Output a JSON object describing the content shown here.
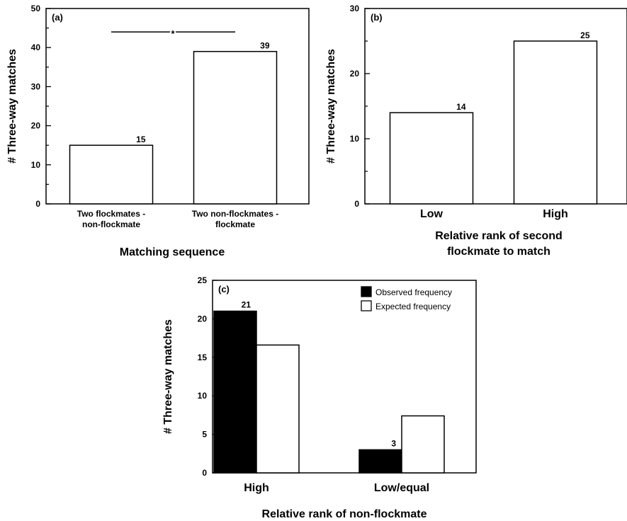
{
  "chart_data": [
    {
      "type": "bar",
      "panel_label": "(a)",
      "categories": [
        [
          "Two flockmates -",
          "non-flockmate"
        ],
        [
          "Two non-flockmates -",
          "flockmate"
        ]
      ],
      "values": [
        15,
        39
      ],
      "data_labels": [
        "15",
        "39"
      ],
      "ylabel": "# Three-way matches",
      "xlabel": "Matching sequence",
      "ylim": [
        0,
        50
      ],
      "yticks": [
        0,
        10,
        20,
        30,
        40,
        50
      ],
      "yminor": [
        5,
        15,
        25,
        35,
        45
      ],
      "significance": {
        "marker": "*",
        "y": 44
      },
      "grid": false
    },
    {
      "type": "bar",
      "panel_label": "(b)",
      "categories": [
        [
          "Low"
        ],
        [
          "High"
        ]
      ],
      "values": [
        14,
        25
      ],
      "data_labels": [
        "14",
        "25"
      ],
      "ylabel": "# Three-way matches",
      "xlabel": [
        "Relative rank of second",
        "flockmate to match"
      ],
      "ylim": [
        0,
        30
      ],
      "yticks": [
        0,
        10,
        20,
        30
      ],
      "yminor": [
        5,
        15,
        25
      ],
      "grid": false
    },
    {
      "type": "bar",
      "panel_label": "(c)",
      "categories": [
        [
          "High"
        ],
        [
          "Low/equal"
        ]
      ],
      "series": [
        {
          "name": "Observed frequency",
          "color": "#000000",
          "values": [
            21,
            3
          ],
          "data_labels": [
            "21",
            "3"
          ]
        },
        {
          "name": "Expected frequency",
          "color": "#ffffff",
          "values": [
            16.6,
            7.4
          ],
          "data_labels": [
            "",
            ""
          ]
        }
      ],
      "ylabel": "# Three-way matches",
      "xlabel": "Relative rank of non-flockmate",
      "ylim": [
        0,
        25
      ],
      "yticks": [
        0,
        5,
        10,
        15,
        20,
        25
      ],
      "legend_position": "top-right",
      "grid": false
    }
  ]
}
